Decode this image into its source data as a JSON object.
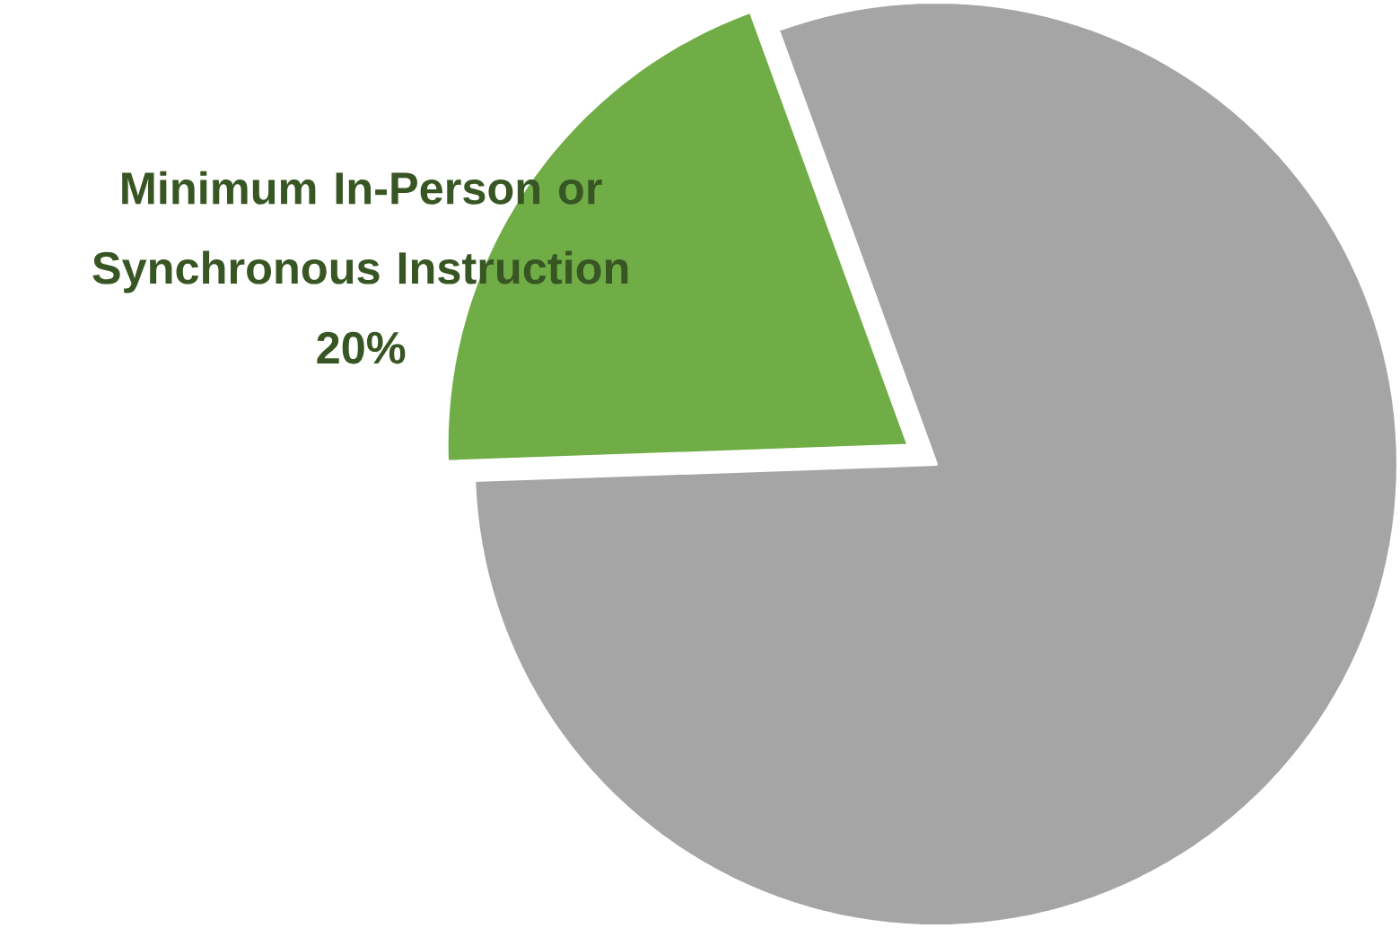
{
  "chart_data": {
    "type": "pie",
    "categories": [
      null,
      "Minimum In-Person or Synchronous Instruction"
    ],
    "values": [
      80,
      20
    ],
    "colors": [
      "#a5a5a5",
      "#70ad47"
    ],
    "value_labels": [
      null,
      "20%"
    ]
  }
}
